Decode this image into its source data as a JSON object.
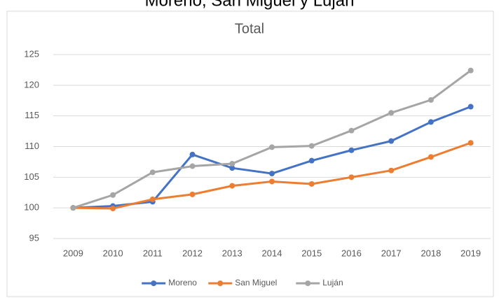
{
  "chart_data": {
    "type": "line",
    "supertitle": "Moreno, San Miguel y Luján",
    "title": "Total",
    "categories": [
      "2009",
      "2010",
      "2011",
      "2012",
      "2013",
      "2014",
      "2015",
      "2016",
      "2017",
      "2018",
      "2019"
    ],
    "series": [
      {
        "name": "Moreno",
        "color": "#4472c4",
        "values": [
          100,
          100.3,
          101,
          108.7,
          106.5,
          105.6,
          107.7,
          109.4,
          110.9,
          114,
          116.5
        ]
      },
      {
        "name": "San Miguel",
        "color": "#ed7d31",
        "values": [
          100,
          99.9,
          101.4,
          102.2,
          103.6,
          104.3,
          103.9,
          105,
          106.1,
          108.3,
          110.6
        ]
      },
      {
        "name": "Luján",
        "color": "#a5a5a5",
        "values": [
          100,
          102.1,
          105.8,
          106.8,
          107.2,
          109.9,
          110.1,
          112.6,
          115.5,
          117.6,
          122.4
        ]
      }
    ],
    "ylim": [
      95,
      125
    ],
    "yticks": [
      95,
      100,
      105,
      110,
      115,
      120,
      125
    ],
    "grid": true,
    "legend": "bottom"
  }
}
